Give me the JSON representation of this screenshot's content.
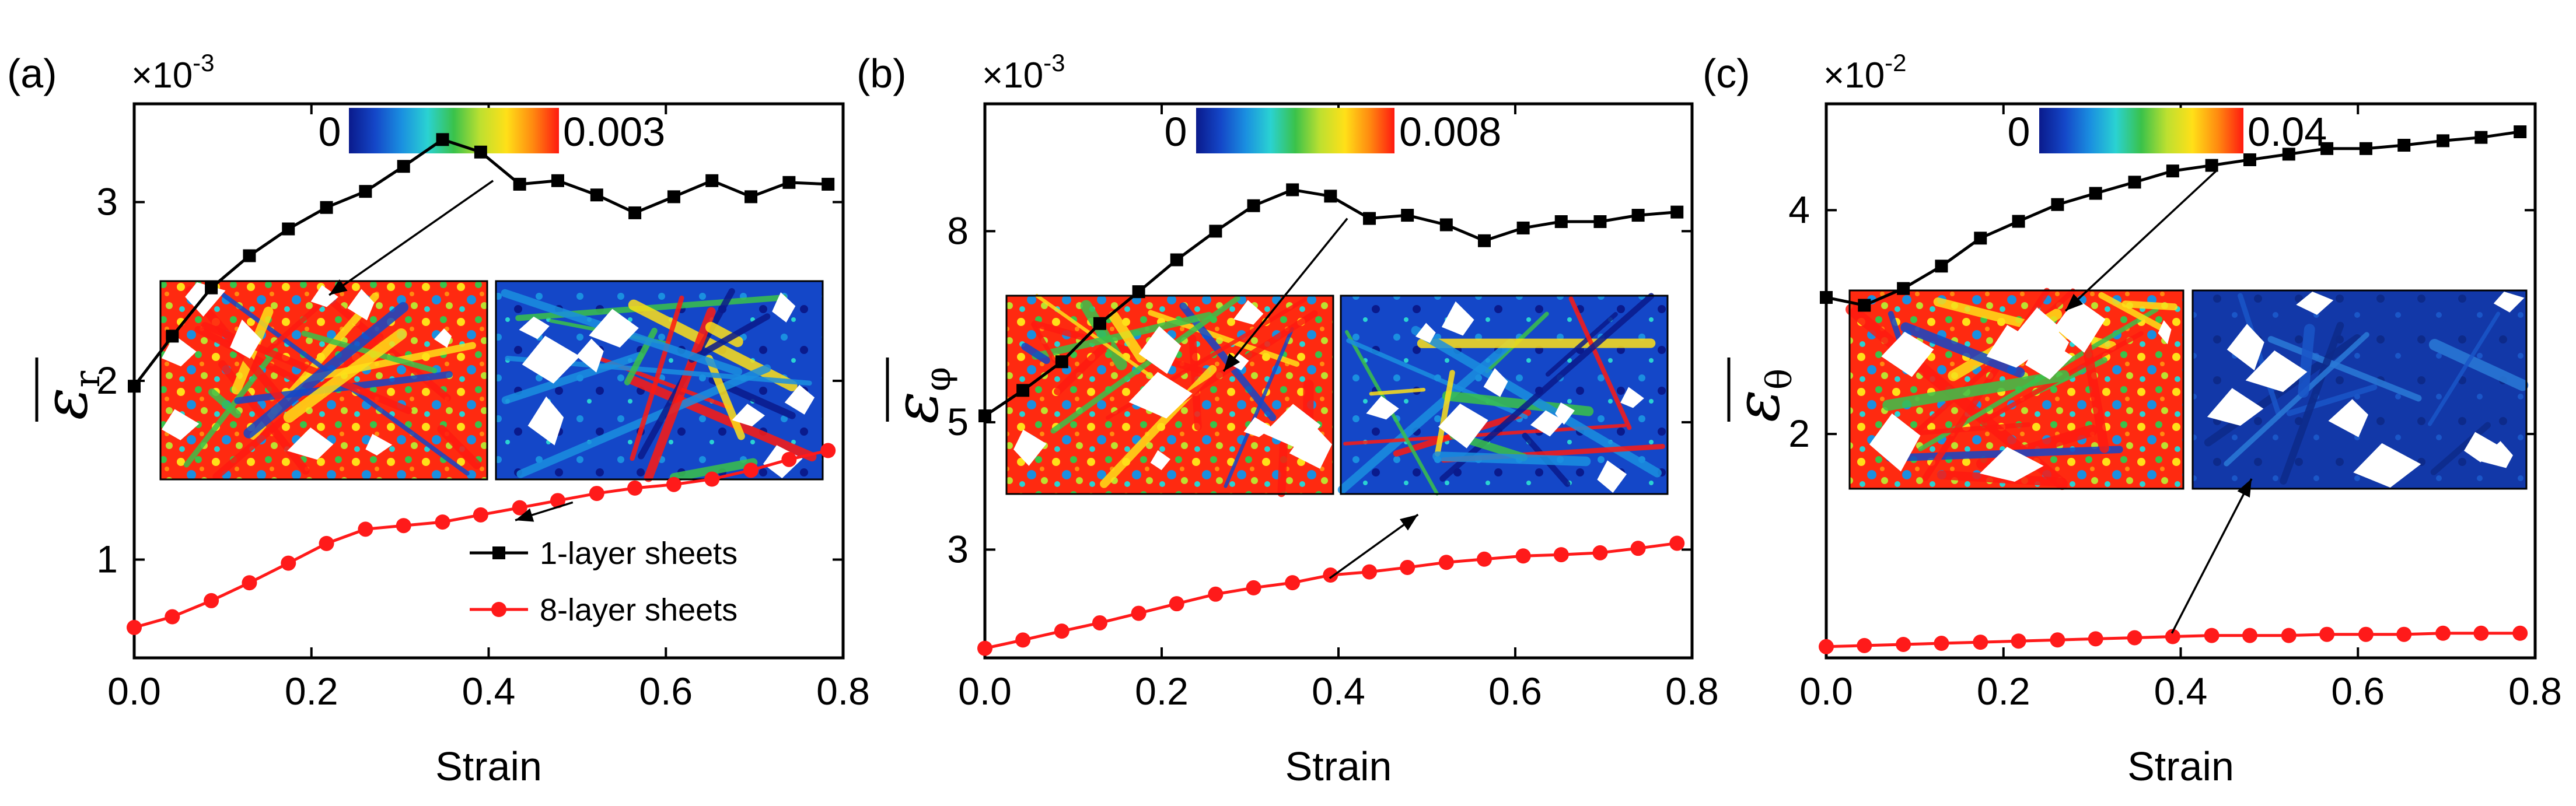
{
  "colors": {
    "series1": "#000000",
    "series2": "#ff1a1a",
    "colormap": [
      "#0a1a8c",
      "#1447c8",
      "#1a8fe0",
      "#2ad2d2",
      "#3ac24a",
      "#bde030",
      "#ffe018",
      "#ff8a10",
      "#ff1a10"
    ]
  },
  "chart_data": [
    {
      "type": "line",
      "panel_label": "(a)",
      "exponent_label": "×10",
      "exponent_power": "-3",
      "ylabel_main": "ε",
      "ylabel_sub": "r",
      "xlabel": "Strain",
      "xlim": [
        0,
        0.8
      ],
      "ylim": [
        0.45,
        3.55
      ],
      "xticks": [
        0.0,
        0.2,
        0.4,
        0.6,
        0.8
      ],
      "xtick_labels": [
        "0.0",
        "0.2",
        "0.4",
        "0.6",
        "0.8"
      ],
      "yticks": [
        1,
        2,
        3
      ],
      "ytick_labels": [
        "1",
        "2",
        "3"
      ],
      "colorbar": {
        "min_label": "0",
        "max_label": "0.003"
      },
      "insets": [
        {
          "name": "1-layer strain map",
          "style": "hot",
          "arrow_from_x": 0.405,
          "arrow_from_y": 3.12,
          "arrow_to_x": 0.22,
          "arrow_to_y": 2.48
        },
        {
          "name": "8-layer strain map",
          "style": "cool",
          "arrow_from_x": 0.495,
          "arrow_from_y": 1.32,
          "arrow_to_x": 0.43,
          "arrow_to_y": 1.22
        }
      ],
      "legend": [
        "1-layer sheets",
        "8-layer sheets"
      ],
      "series": [
        {
          "name": "1-layer sheets",
          "x": [
            0.0,
            0.043,
            0.087,
            0.13,
            0.174,
            0.217,
            0.261,
            0.304,
            0.348,
            0.391,
            0.435,
            0.478,
            0.522,
            0.565,
            0.609,
            0.652,
            0.696,
            0.739,
            0.783
          ],
          "values": [
            1.97,
            2.25,
            2.52,
            2.7,
            2.85,
            2.97,
            3.06,
            3.2,
            3.35,
            3.28,
            3.1,
            3.12,
            3.04,
            2.94,
            3.03,
            3.12,
            3.03,
            3.11,
            3.1
          ]
        },
        {
          "name": "8-layer sheets",
          "x": [
            0.0,
            0.043,
            0.087,
            0.13,
            0.174,
            0.217,
            0.261,
            0.304,
            0.348,
            0.391,
            0.435,
            0.478,
            0.522,
            0.565,
            0.609,
            0.652,
            0.696,
            0.739,
            0.783
          ],
          "values": [
            0.62,
            0.68,
            0.77,
            0.87,
            0.98,
            1.09,
            1.17,
            1.19,
            1.21,
            1.25,
            1.29,
            1.33,
            1.37,
            1.4,
            1.42,
            1.45,
            1.5,
            1.56,
            1.61
          ]
        }
      ]
    },
    {
      "type": "line",
      "panel_label": "(b)",
      "exponent_label": "×10",
      "exponent_power": "-3",
      "ylabel_main": "ε",
      "ylabel_sub": "φ",
      "xlabel": "Strain",
      "xlim": [
        0,
        0.8
      ],
      "ylim": [
        1.3,
        10.0
      ],
      "xticks": [
        0.0,
        0.2,
        0.4,
        0.6,
        0.8
      ],
      "xtick_labels": [
        "0.0",
        "0.2",
        "0.4",
        "0.6",
        "0.8"
      ],
      "yticks": [
        3,
        5,
        8
      ],
      "ytick_labels": [
        "3",
        "5",
        "8"
      ],
      "colorbar": {
        "min_label": "0",
        "max_label": "0.008"
      },
      "insets": [
        {
          "name": "1-layer strain map",
          "style": "hot",
          "arrow_from_x": 0.41,
          "arrow_from_y": 8.2,
          "arrow_to_x": 0.27,
          "arrow_to_y": 5.8
        },
        {
          "name": "8-layer strain map",
          "style": "cool",
          "arrow_from_x": 0.39,
          "arrow_from_y": 2.55,
          "arrow_to_x": 0.49,
          "arrow_to_y": 3.55
        }
      ],
      "legend": [],
      "series": [
        {
          "name": "1-layer sheets",
          "x": [
            0.0,
            0.043,
            0.087,
            0.13,
            0.174,
            0.217,
            0.261,
            0.304,
            0.348,
            0.391,
            0.435,
            0.478,
            0.522,
            0.565,
            0.609,
            0.652,
            0.696,
            0.739,
            0.783
          ],
          "values": [
            5.1,
            5.5,
            5.95,
            6.55,
            7.05,
            7.55,
            8.0,
            8.4,
            8.65,
            8.55,
            8.2,
            8.25,
            8.1,
            7.85,
            8.05,
            8.15,
            8.15,
            8.25,
            8.3
          ]
        },
        {
          "name": "8-layer sheets",
          "x": [
            0.0,
            0.043,
            0.087,
            0.13,
            0.174,
            0.217,
            0.261,
            0.304,
            0.348,
            0.391,
            0.435,
            0.478,
            0.522,
            0.565,
            0.609,
            0.652,
            0.696,
            0.739,
            0.783
          ],
          "values": [
            1.45,
            1.58,
            1.72,
            1.85,
            2.0,
            2.15,
            2.3,
            2.4,
            2.48,
            2.6,
            2.65,
            2.72,
            2.8,
            2.85,
            2.9,
            2.92,
            2.95,
            3.02,
            3.1
          ]
        }
      ]
    },
    {
      "type": "line",
      "panel_label": "(c)",
      "exponent_label": "×10",
      "exponent_power": "-2",
      "ylabel_main": "ε",
      "ylabel_sub": "θ",
      "xlabel": "Strain",
      "xlim": [
        0,
        0.8
      ],
      "ylim": [
        0.0,
        4.95
      ],
      "xticks": [
        0.0,
        0.2,
        0.4,
        0.6,
        0.8
      ],
      "xtick_labels": [
        "0.0",
        "0.2",
        "0.4",
        "0.6",
        "0.8"
      ],
      "yticks": [
        2,
        4
      ],
      "ytick_labels": [
        "2",
        "4"
      ],
      "colorbar": {
        "min_label": "0",
        "max_label": "0.04"
      },
      "insets": [
        {
          "name": "1-layer strain map",
          "style": "hot",
          "arrow_from_x": 0.44,
          "arrow_from_y": 4.35,
          "arrow_to_x": 0.27,
          "arrow_to_y": 3.1
        },
        {
          "name": "8-layer strain map",
          "style": "navy",
          "arrow_from_x": 0.39,
          "arrow_from_y": 0.22,
          "arrow_to_x": 0.48,
          "arrow_to_y": 1.6
        }
      ],
      "legend": [],
      "series": [
        {
          "name": "1-layer sheets",
          "x": [
            0.0,
            0.043,
            0.087,
            0.13,
            0.174,
            0.217,
            0.261,
            0.304,
            0.348,
            0.391,
            0.435,
            0.478,
            0.522,
            0.565,
            0.609,
            0.652,
            0.696,
            0.739,
            0.783
          ],
          "values": [
            3.22,
            3.15,
            3.3,
            3.5,
            3.75,
            3.9,
            4.05,
            4.15,
            4.25,
            4.35,
            4.4,
            4.45,
            4.5,
            4.55,
            4.55,
            4.58,
            4.62,
            4.65,
            4.7
          ]
        },
        {
          "name": "8-layer sheets",
          "x": [
            0.0,
            0.043,
            0.087,
            0.13,
            0.174,
            0.217,
            0.261,
            0.304,
            0.348,
            0.391,
            0.435,
            0.478,
            0.522,
            0.565,
            0.609,
            0.652,
            0.696,
            0.739,
            0.783
          ],
          "values": [
            0.1,
            0.11,
            0.12,
            0.13,
            0.14,
            0.15,
            0.16,
            0.17,
            0.18,
            0.19,
            0.2,
            0.2,
            0.2,
            0.21,
            0.21,
            0.21,
            0.22,
            0.22,
            0.22
          ]
        }
      ]
    }
  ]
}
